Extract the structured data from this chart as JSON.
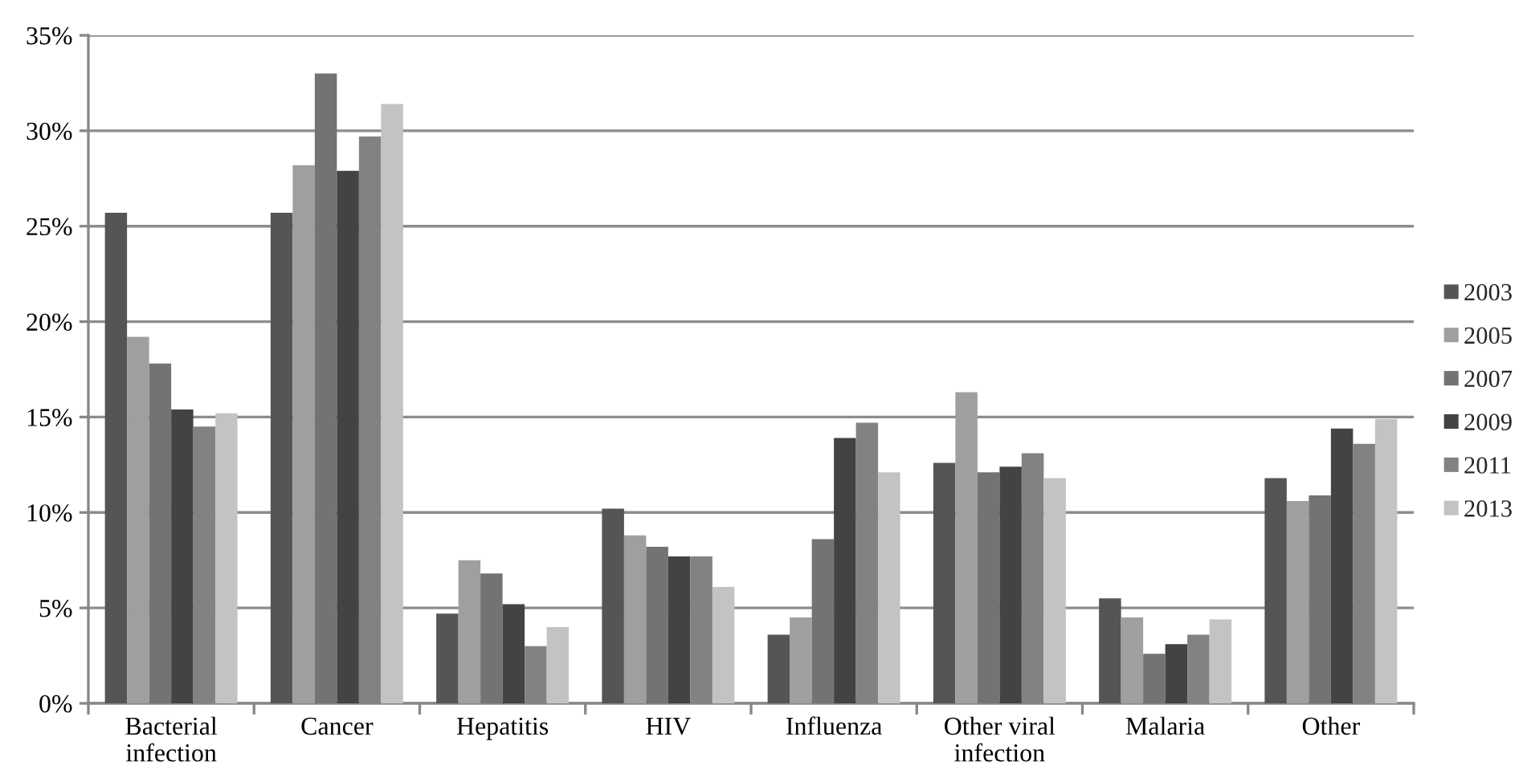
{
  "chart_data": {
    "type": "bar",
    "categories": [
      "Bacterial infection",
      "Cancer",
      "Hepatitis",
      "HIV",
      "Influenza",
      "Other viral infection",
      "Malaria",
      "Other"
    ],
    "series": [
      {
        "name": "2003",
        "color": "#555555",
        "values": [
          25.7,
          25.7,
          4.7,
          10.2,
          3.6,
          12.6,
          5.5,
          11.8
        ]
      },
      {
        "name": "2005",
        "color": "#9f9f9f",
        "values": [
          19.2,
          28.2,
          7.5,
          8.8,
          4.5,
          16.3,
          4.5,
          10.6
        ]
      },
      {
        "name": "2007",
        "color": "#737373",
        "values": [
          17.8,
          33.0,
          6.8,
          8.2,
          8.6,
          12.1,
          2.6,
          10.9
        ]
      },
      {
        "name": "2009",
        "color": "#434343",
        "values": [
          15.4,
          27.9,
          5.2,
          7.7,
          13.9,
          12.4,
          3.1,
          14.4
        ]
      },
      {
        "name": "2011",
        "color": "#828282",
        "values": [
          14.5,
          29.7,
          3.0,
          7.7,
          14.7,
          13.1,
          3.6,
          13.6
        ]
      },
      {
        "name": "2013",
        "color": "#c3c3c3",
        "values": [
          15.2,
          31.4,
          4.0,
          6.1,
          12.1,
          11.8,
          4.4,
          14.9
        ]
      }
    ],
    "ylim": [
      0,
      35
    ],
    "yticks": [
      {
        "value": 0,
        "label": "0%"
      },
      {
        "value": 5,
        "label": "5%"
      },
      {
        "value": 10,
        "label": "10%"
      },
      {
        "value": 15,
        "label": "15%"
      },
      {
        "value": 20,
        "label": "20%"
      },
      {
        "value": 25,
        "label": "25%"
      },
      {
        "value": 30,
        "label": "30%"
      },
      {
        "value": 35,
        "label": "35%"
      }
    ],
    "grid": "y",
    "legend": "right"
  }
}
